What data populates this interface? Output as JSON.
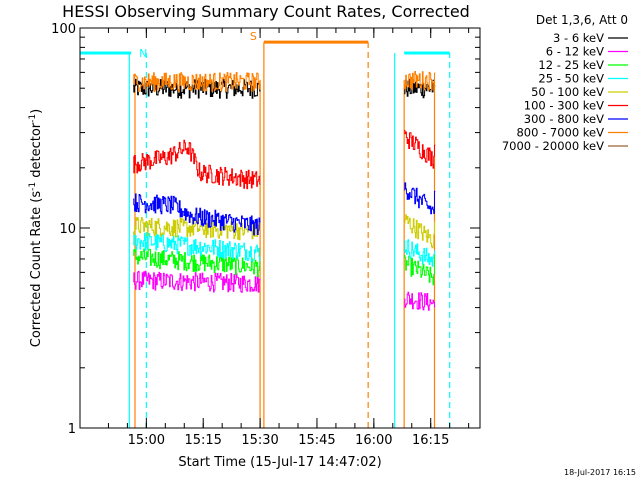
{
  "chart_data": {
    "type": "line",
    "title": "HESSI Observing Summary Count Rates, Corrected",
    "xlabel": "Start Time (15-Jul-17 14:47:02)",
    "ylabel_main": "Corrected Count Rate (s",
    "ylabel_sup1": "-1",
    "ylabel_mid": " detector",
    "ylabel_sup2": "-1",
    "ylabel_end": ")",
    "yscale": "log",
    "ylim": [
      1,
      100
    ],
    "xlim_minutes": [
      -4.5,
      101
    ],
    "x_ticks": [
      {
        "t": 13,
        "label": "15:00"
      },
      {
        "t": 28,
        "label": "15:15"
      },
      {
        "t": 43,
        "label": "15:30"
      },
      {
        "t": 58,
        "label": "15:45"
      },
      {
        "t": 73,
        "label": "16:00"
      },
      {
        "t": 88,
        "label": "16:15"
      }
    ],
    "y_ticks": [
      {
        "v": 1,
        "label": "1"
      },
      {
        "v": 10,
        "label": "10"
      },
      {
        "v": 100,
        "label": "100"
      }
    ],
    "legend_title": "Det 1,3,6, Att 0",
    "legend_placement": "right",
    "series": [
      {
        "name": "3 - 6 keV",
        "color": "#000000",
        "segments": [
          [
            [
              9.5,
              50
            ],
            [
              43,
              50
            ]
          ],
          [
            [
              81,
              50
            ],
            [
              89,
              50
            ]
          ]
        ]
      },
      {
        "name": "6 - 12 keV",
        "color": "#ff00ff",
        "segments": [
          [
            [
              9.5,
              5.5
            ],
            [
              43,
              5.3
            ]
          ],
          [
            [
              81,
              4.5
            ],
            [
              89,
              4.2
            ]
          ]
        ]
      },
      {
        "name": "12 - 25 keV",
        "color": "#00ff00",
        "segments": [
          [
            [
              9.5,
              7.2
            ],
            [
              43,
              6.4
            ]
          ],
          [
            [
              81,
              6.7
            ],
            [
              89,
              5.6
            ]
          ]
        ]
      },
      {
        "name": "25 - 50 keV",
        "color": "#00ffff",
        "segments": [
          [
            [
              9.5,
              8.7
            ],
            [
              43,
              7.6
            ]
          ],
          [
            [
              81,
              8.2
            ],
            [
              89,
              6.8
            ]
          ]
        ]
      },
      {
        "name": "50 - 100 keV",
        "color": "#cccc00",
        "segments": [
          [
            [
              9.5,
              10.3
            ],
            [
              43,
              9.7
            ]
          ],
          [
            [
              81,
              11
            ],
            [
              89,
              8.6
            ]
          ]
        ]
      },
      {
        "name": "100 - 300 keV",
        "color": "#ff0000",
        "segments": [
          [
            [
              9.5,
              21
            ],
            [
              18,
              22.5
            ],
            [
              24,
              25.5
            ],
            [
              27,
              19
            ],
            [
              43,
              17.3
            ]
          ],
          [
            [
              81,
              29
            ],
            [
              89,
              22
            ]
          ]
        ]
      },
      {
        "name": "300 - 800 keV",
        "color": "#0000ff",
        "segments": [
          [
            [
              9.5,
              13.5
            ],
            [
              20,
              13
            ],
            [
              25,
              11.5
            ],
            [
              43,
              10.2
            ]
          ],
          [
            [
              81,
              16
            ],
            [
              89,
              12
            ]
          ]
        ]
      },
      {
        "name": "800 - 7000 keV",
        "color": "#ff8000",
        "segments": [
          [
            [
              9.5,
              54
            ],
            [
              43,
              54
            ]
          ],
          [
            [
              81,
              55
            ],
            [
              89,
              55
            ]
          ]
        ]
      },
      {
        "name": "7000 - 20000 keV",
        "color": "#996633",
        "segments": []
      }
    ],
    "bars": [
      {
        "label": "N",
        "color": "#00ffff",
        "x0": -4.5,
        "x1": 9.0,
        "v": 75
      },
      {
        "label": "",
        "color": "#00ffff",
        "x0": 81,
        "x1": 93,
        "v": 75
      },
      {
        "label": "S",
        "color": "#ff8000",
        "x0": 44,
        "x1": 71.5,
        "v": 85
      }
    ],
    "vlines": [
      {
        "t": 8.5,
        "color": "#00ffff",
        "style": "solid",
        "v": 75
      },
      {
        "t": 13.0,
        "color": "#00ffff",
        "style": "dashed",
        "v": 75
      },
      {
        "t": 78.5,
        "color": "#00ffff",
        "style": "solid",
        "v": 75
      },
      {
        "t": 93.0,
        "color": "#00ffff",
        "style": "dashed",
        "v": 75
      },
      {
        "t": 44.0,
        "color": "#ff8000",
        "style": "solid",
        "v": 85
      },
      {
        "t": 71.5,
        "color": "#ff8000",
        "style": "dashed",
        "v": 85
      },
      {
        "t": 10.0,
        "color": "#ff8000",
        "style": "solid",
        "v": 55
      },
      {
        "t": 43.0,
        "color": "#ff8000",
        "style": "solid",
        "v": 55
      },
      {
        "t": 81.0,
        "color": "#ff8000",
        "style": "solid",
        "v": 55
      },
      {
        "t": 89.0,
        "color": "#ff8000",
        "style": "solid",
        "v": 55
      }
    ],
    "footer_date": "18-Jul-2017 16:15"
  }
}
